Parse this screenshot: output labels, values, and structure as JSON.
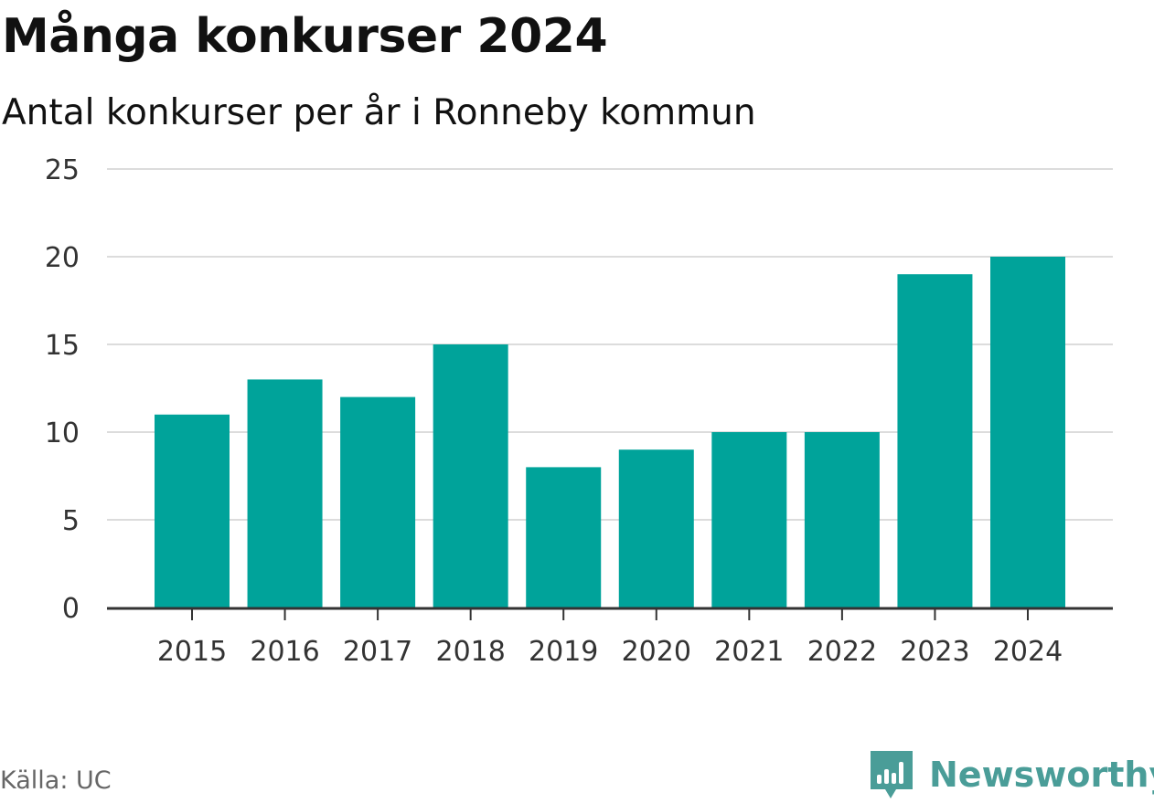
{
  "title": "Många konkurser 2024",
  "subtitle": "Antal konkurser per år i Ronneby kommun",
  "source": "Källa: UC",
  "brand": {
    "name": "Newsworthy",
    "logo_icon": "newsworthy-logo-icon",
    "color": "#4a9d98"
  },
  "colors": {
    "bar": "#00a39a",
    "grid": "#dcdcdc",
    "axis": "#333333",
    "tick_label": "#333333"
  },
  "chart_data": {
    "type": "bar",
    "categories": [
      "2015",
      "2016",
      "2017",
      "2018",
      "2019",
      "2020",
      "2021",
      "2022",
      "2023",
      "2024"
    ],
    "values": [
      11,
      13,
      12,
      15,
      8,
      9,
      10,
      10,
      19,
      20
    ],
    "y_ticks": [
      0,
      5,
      10,
      15,
      20,
      25
    ],
    "ylim": [
      0,
      25
    ],
    "grid": true,
    "legend": false
  }
}
